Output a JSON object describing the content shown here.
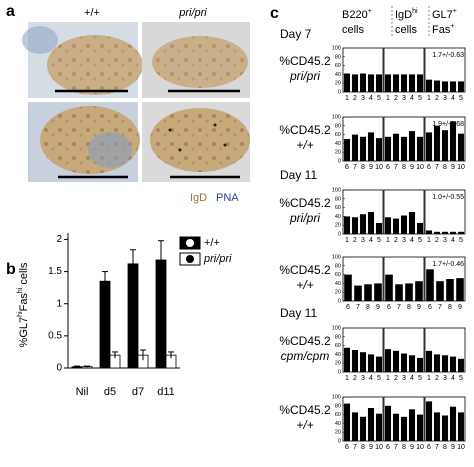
{
  "panel_a": {
    "letter": "a",
    "col_labels": [
      "+/+",
      "pri/pri"
    ],
    "legend": [
      "IgD",
      "PNA"
    ]
  },
  "chart_data": [
    {
      "type": "bar",
      "letter": "b",
      "y_label": {
        "pre": "%GL7",
        "sup1": "hi",
        "mid": "Fas",
        "sup2": "hi",
        "post": " cells"
      },
      "categories": [
        "Nil",
        "d5",
        "d7",
        "d11"
      ],
      "series": [
        {
          "name": "+/+",
          "color": "#000000",
          "values": [
            0.02,
            1.35,
            1.62,
            1.68
          ],
          "errors": [
            0.01,
            0.15,
            0.22,
            0.3
          ]
        },
        {
          "name": "pri/pri",
          "color": "#ffffff",
          "values": [
            0.02,
            0.2,
            0.2,
            0.2
          ],
          "errors": [
            0.01,
            0.05,
            0.08,
            0.05
          ]
        }
      ],
      "ylim": [
        0,
        2.1
      ],
      "yticks": [
        0,
        0.5,
        1,
        1.5,
        2
      ],
      "legend": "upper right"
    },
    {
      "type": "bar_grid",
      "letter": "c",
      "columns": [
        {
          "main": "B220",
          "sup": "+",
          "line2": "cells"
        },
        {
          "main": "IgD",
          "sup": "hi",
          "line2": "cells"
        },
        {
          "main": "GL7",
          "sup": "+",
          "line2": "Fas",
          "sup2": "+"
        }
      ],
      "ylim": [
        0,
        100
      ],
      "yticks": [
        0,
        20,
        40,
        60,
        80,
        100
      ],
      "color": "#000000",
      "rows": [
        {
          "day": "Day 7",
          "label": [
            "%CD45.2",
            "pri/pri"
          ],
          "categories": [
            "1",
            "2",
            "3",
            "4",
            "5"
          ],
          "values": [
            [
              42,
              40,
              42,
              40,
              40
            ],
            [
              40,
              40,
              40,
              40,
              40
            ],
            [
              28,
              26,
              24,
              24,
              24
            ]
          ],
          "annotation": "1.7+/-0.63"
        },
        {
          "label": [
            "%CD45.2",
            "+/+"
          ],
          "categories": [
            "6",
            "7",
            "8",
            "9",
            "10"
          ],
          "values": [
            [
              50,
              60,
              55,
              65,
              52
            ],
            [
              55,
              62,
              55,
              68,
              55
            ],
            [
              65,
              80,
              70,
              90,
              62
            ]
          ],
          "annotation": "1.9+/-0.68"
        },
        {
          "day": "Day 11",
          "label": [
            "%CD45.2",
            "pri/pri"
          ],
          "categories": [
            "1",
            "2",
            "3",
            "4",
            "5"
          ],
          "values": [
            [
              40,
              38,
              45,
              50,
              25
            ],
            [
              38,
              35,
              42,
              50,
              25
            ],
            [
              8,
              5,
              5,
              5,
              5
            ]
          ],
          "annotation": "1.0+/-0.55"
        },
        {
          "label": [
            "%CD45.2",
            "+/+"
          ],
          "categories": [
            "6",
            "7",
            "8",
            "9"
          ],
          "values": [
            [
              60,
              35,
              38,
              40
            ],
            [
              60,
              38,
              40,
              45
            ],
            [
              72,
              45,
              50,
              52
            ]
          ],
          "annotation": "1.7+/-0.46"
        },
        {
          "day": "Day 11",
          "label": [
            "%CD45.2",
            "cpm/cpm"
          ],
          "categories": [
            "1",
            "2",
            "3",
            "4",
            "5"
          ],
          "values": [
            [
              55,
              50,
              45,
              40,
              35
            ],
            [
              52,
              48,
              42,
              38,
              32
            ],
            [
              48,
              40,
              38,
              35,
              30
            ]
          ]
        },
        {
          "label": [
            "%CD45.2",
            "+/+"
          ],
          "categories": [
            "6",
            "7",
            "8",
            "9",
            "10"
          ],
          "values": [
            [
              85,
              65,
              55,
              75,
              62
            ],
            [
              80,
              62,
              55,
              72,
              60
            ],
            [
              90,
              65,
              58,
              78,
              65
            ]
          ]
        }
      ]
    }
  ]
}
